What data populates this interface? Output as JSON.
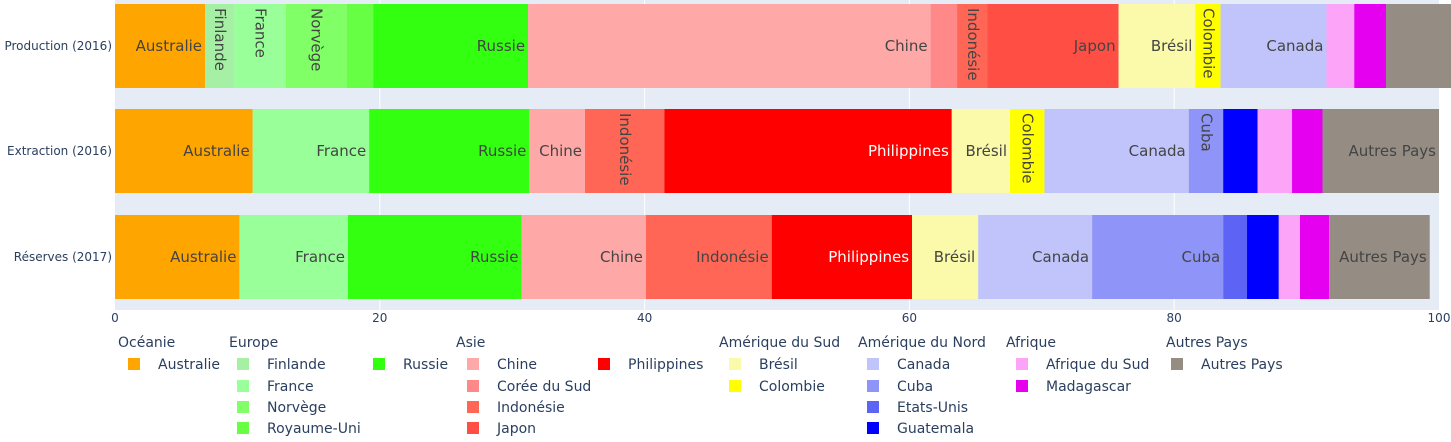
{
  "chart_data": {
    "type": "bar",
    "orientation": "horizontal",
    "barmode": "stack",
    "categories": [
      "Production (2016)",
      "Extraction (2016)",
      "Réserves (2017)"
    ],
    "xlim": [
      0,
      100
    ],
    "x_ticks": [
      0,
      20,
      40,
      60,
      80,
      100
    ],
    "grid": true,
    "legend_position": "bottom",
    "series": [
      {
        "name": "Australie",
        "group": "Océanie",
        "color": "#FFA500",
        "values": [
          6.8,
          10.4,
          9.4
        ],
        "labels": [
          "Australie",
          "Australie",
          "Australie"
        ]
      },
      {
        "name": "Finlande",
        "group": "Europe",
        "color": "#A6F0A6",
        "values": [
          2.2,
          0,
          0
        ],
        "labels": [
          "Finlande",
          "",
          ""
        ],
        "vertical": [
          true,
          false,
          false
        ]
      },
      {
        "name": "France",
        "group": "Europe",
        "color": "#99FF99",
        "values": [
          3.9,
          8.8,
          8.2
        ],
        "labels": [
          "France",
          "France",
          "France"
        ],
        "vertical": [
          true,
          false,
          false
        ]
      },
      {
        "name": "Norvège",
        "group": "Europe",
        "color": "#80FF66",
        "values": [
          4.6,
          0,
          0
        ],
        "labels": [
          "Norvège",
          "",
          ""
        ],
        "vertical": [
          true,
          false,
          false
        ]
      },
      {
        "name": "Royaume-Uni",
        "group": "Europe",
        "color": "#66FF44",
        "values": [
          2.0,
          0,
          0
        ],
        "labels": [
          "",
          "",
          ""
        ]
      },
      {
        "name": "Russie",
        "group": "Europe",
        "color": "#33FF11",
        "values": [
          11.7,
          12.1,
          13.1
        ],
        "labels": [
          "Russie",
          "Russie",
          "Russie"
        ]
      },
      {
        "name": "Chine",
        "group": "Asie",
        "color": "#FFA8A8",
        "values": [
          30.4,
          4.2,
          9.4
        ],
        "labels": [
          "Chine",
          "Chine",
          "Chine"
        ]
      },
      {
        "name": "Corée du Sud",
        "group": "Asie",
        "color": "#FF8888",
        "values": [
          2.0,
          0,
          0
        ],
        "labels": [
          "",
          "",
          ""
        ]
      },
      {
        "name": "Indonésie",
        "group": "Asie",
        "color": "#FF6655",
        "values": [
          2.3,
          6.0,
          9.5
        ],
        "labels": [
          "Indonésie",
          "Indonésie",
          "Indonésie"
        ],
        "vertical": [
          true,
          true,
          false
        ]
      },
      {
        "name": "Japon",
        "group": "Asie",
        "color": "#FF4F45",
        "values": [
          9.9,
          0,
          0
        ],
        "labels": [
          "Japon",
          "",
          ""
        ]
      },
      {
        "name": "Philippines",
        "group": "Asie",
        "color": "#FF0000",
        "values": [
          0,
          21.7,
          10.6
        ],
        "labels": [
          "",
          "Philippines",
          "Philippines"
        ]
      },
      {
        "name": "Brésil",
        "group": "Amérique du Sud",
        "color": "#FAFAAA",
        "values": [
          5.8,
          4.4,
          5.0
        ],
        "labels": [
          "Brésil",
          "Brésil",
          "Brésil"
        ]
      },
      {
        "name": "Colombie",
        "group": "Amérique du Sud",
        "color": "#FFFF00",
        "values": [
          1.9,
          2.6,
          0
        ],
        "labels": [
          "Colombie",
          "Colombie",
          ""
        ],
        "vertical": [
          true,
          true,
          false
        ]
      },
      {
        "name": "Canada",
        "group": "Amérique du Nord",
        "color": "#C0C4FA",
        "values": [
          8.0,
          10.9,
          8.6
        ],
        "labels": [
          "Canada",
          "Canada",
          "Canada"
        ]
      },
      {
        "name": "Cuba",
        "group": "Amérique du Nord",
        "color": "#8F95F8",
        "values": [
          0,
          2.6,
          9.9
        ],
        "labels": [
          "",
          "Cuba",
          "Cuba"
        ],
        "vertical": [
          false,
          true,
          false
        ]
      },
      {
        "name": "Etats-Unis",
        "group": "Amérique du Nord",
        "color": "#5C63F5",
        "values": [
          0,
          0,
          1.8
        ],
        "labels": [
          "",
          "",
          ""
        ]
      },
      {
        "name": "Guatemala",
        "group": "Amérique du Nord",
        "color": "#0000FF",
        "values": [
          0,
          2.6,
          2.4
        ],
        "labels": [
          "",
          "",
          ""
        ]
      },
      {
        "name": "Afrique du Sud",
        "group": "Afrique",
        "color": "#FBA4F8",
        "values": [
          2.1,
          2.6,
          1.6
        ],
        "labels": [
          "",
          "",
          ""
        ]
      },
      {
        "name": "Madagascar",
        "group": "Afrique",
        "color": "#E600F0",
        "values": [
          2.4,
          2.3,
          2.2
        ],
        "labels": [
          "",
          "",
          ""
        ]
      },
      {
        "name": "Autres Pays",
        "group": "Autres Pays",
        "color": "#958D83",
        "values": [
          6.1,
          8.8,
          7.6
        ],
        "labels": [
          "",
          "Autres Pays",
          "Autres Pays"
        ]
      }
    ]
  },
  "legend": {
    "groups": [
      {
        "title": "Océanie",
        "items": [
          "Australie"
        ]
      },
      {
        "title": "Europe",
        "items": [
          "Finlande",
          "France",
          "Norvège",
          "Royaume-Uni",
          "Russie"
        ]
      },
      {
        "title": "Asie",
        "items": [
          "Chine",
          "Corée du Sud",
          "Indonésie",
          "Japon",
          "Philippines"
        ]
      },
      {
        "title": "Amérique du Sud",
        "items": [
          "Brésil",
          "Colombie"
        ]
      },
      {
        "title": "Amérique du Nord",
        "items": [
          "Canada",
          "Cuba",
          "Etats-Unis",
          "Guatemala"
        ]
      },
      {
        "title": "Afrique",
        "items": [
          "Afrique du Sud",
          "Madagascar"
        ]
      },
      {
        "title": "Autres Pays",
        "items": [
          "Autres Pays"
        ]
      }
    ]
  }
}
